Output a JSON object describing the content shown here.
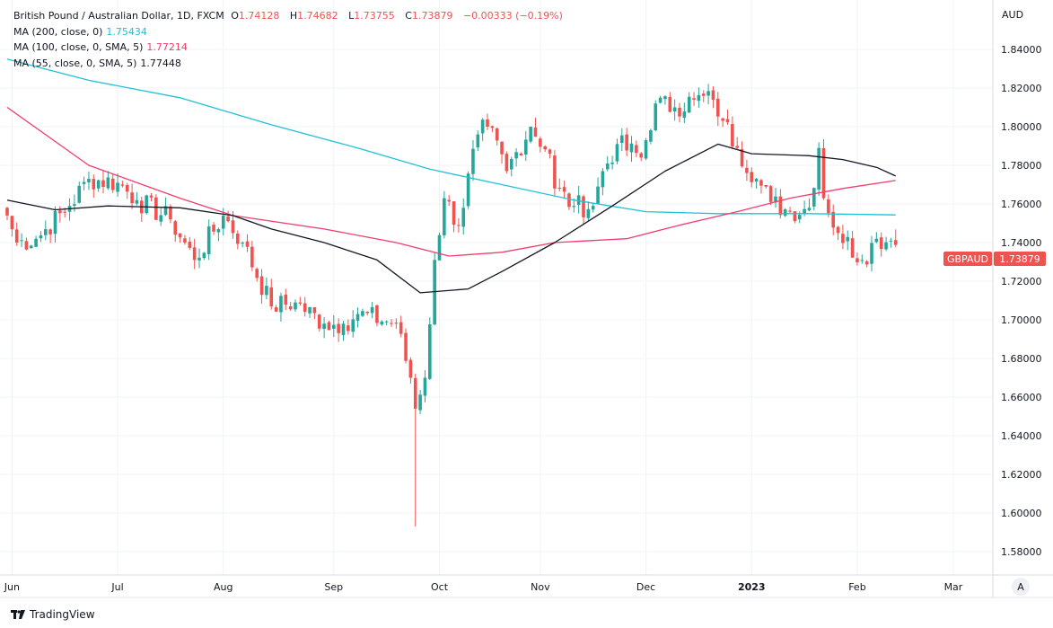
{
  "header": {
    "title": "British Pound / Australian Dollar, 1D, FXCM",
    "o_label": "O",
    "o": "1.74128",
    "h_label": "H",
    "h": "1.74682",
    "l_label": "L",
    "l": "1.73755",
    "c_label": "C",
    "c": "1.73879",
    "change": "−0.00333 (−0.19%)"
  },
  "indicators": [
    {
      "label": "MA (200, close, 0)",
      "value": "1.75434",
      "color": "#22c1d6"
    },
    {
      "label": "MA (100, close, 0, SMA, 5)",
      "value": "1.77214",
      "color": "#f23d6d"
    },
    {
      "label": "MA (55, close, 0, SMA, 5)",
      "value": "1.77448",
      "color": "#131722"
    }
  ],
  "price_label": {
    "symbol": "GBPAUD",
    "value": "1.73879"
  },
  "currency": "AUD",
  "auto_button": "A",
  "brand": "TradingView",
  "chart_data": {
    "type": "candlestick",
    "title": "British Pound / Australian Dollar, 1D, FXCM",
    "ylim": [
      1.57,
      1.85
    ],
    "y_ticks": [
      "1.84000",
      "1.82000",
      "1.80000",
      "1.78000",
      "1.76000",
      "1.74000",
      "1.72000",
      "1.70000",
      "1.68000",
      "1.66000",
      "1.64000",
      "1.62000",
      "1.60000",
      "1.58000"
    ],
    "x_ticks": [
      {
        "label": "Jun",
        "day": 1
      },
      {
        "label": "Jul",
        "day": 23
      },
      {
        "label": "Aug",
        "day": 45
      },
      {
        "label": "Sep",
        "day": 68
      },
      {
        "label": "Oct",
        "day": 90
      },
      {
        "label": "Nov",
        "day": 111
      },
      {
        "label": "Dec",
        "day": 133
      },
      {
        "label": "2023",
        "day": 155
      },
      {
        "label": "Feb",
        "day": 177
      },
      {
        "label": "Mar",
        "day": 197
      }
    ],
    "candle_count": 186,
    "close_anchors": [
      [
        0,
        1.754
      ],
      [
        2,
        1.74
      ],
      [
        6,
        1.742
      ],
      [
        13,
        1.759
      ],
      [
        17,
        1.773
      ],
      [
        23,
        1.771
      ],
      [
        27,
        1.762
      ],
      [
        34,
        1.752
      ],
      [
        39,
        1.731
      ],
      [
        45,
        1.754
      ],
      [
        49,
        1.74
      ],
      [
        55,
        1.707
      ],
      [
        60,
        1.709
      ],
      [
        66,
        1.698
      ],
      [
        70,
        1.698
      ],
      [
        73,
        1.703
      ],
      [
        81,
        1.698
      ],
      [
        84,
        1.67
      ],
      [
        85,
        1.654
      ],
      [
        87,
        1.67
      ],
      [
        89,
        1.731
      ],
      [
        91,
        1.763
      ],
      [
        94,
        1.749
      ],
      [
        98,
        1.796
      ],
      [
        100,
        1.8
      ],
      [
        104,
        1.777
      ],
      [
        109,
        1.8
      ],
      [
        113,
        1.786
      ],
      [
        114,
        1.768
      ],
      [
        118,
        1.759
      ],
      [
        122,
        1.759
      ],
      [
        124,
        1.777
      ],
      [
        127,
        1.791
      ],
      [
        132,
        1.784
      ],
      [
        135,
        1.812
      ],
      [
        139,
        1.81
      ],
      [
        143,
        1.814
      ],
      [
        147,
        1.814
      ],
      [
        149,
        1.803
      ],
      [
        152,
        1.789
      ],
      [
        156,
        1.773
      ],
      [
        159,
        1.761
      ],
      [
        163,
        1.756
      ],
      [
        167,
        1.758
      ],
      [
        169,
        1.789
      ],
      [
        170,
        1.763
      ],
      [
        173,
        1.745
      ],
      [
        178,
        1.731
      ],
      [
        181,
        1.742
      ],
      [
        184,
        1.741
      ],
      [
        185,
        1.73879
      ]
    ],
    "last_candle": {
      "open": 1.74128,
      "high": 1.74682,
      "low": 1.73755,
      "close": 1.73879
    },
    "notable_low": {
      "day": 85,
      "low": 1.593
    },
    "series": [
      {
        "name": "MA 200",
        "color": "#22c1d6",
        "points": [
          [
            0,
            1.835
          ],
          [
            17,
            1.824
          ],
          [
            36,
            1.815
          ],
          [
            55,
            1.801
          ],
          [
            73,
            1.789
          ],
          [
            88,
            1.778
          ],
          [
            103,
            1.77
          ],
          [
            118,
            1.762
          ],
          [
            133,
            1.756
          ],
          [
            148,
            1.755
          ],
          [
            167,
            1.755
          ],
          [
            185,
            1.75434
          ]
        ]
      },
      {
        "name": "MA 100",
        "color": "#f23d6d",
        "points": [
          [
            0,
            1.81
          ],
          [
            17,
            1.78
          ],
          [
            36,
            1.763
          ],
          [
            47,
            1.754
          ],
          [
            66,
            1.747
          ],
          [
            81,
            1.74
          ],
          [
            92,
            1.733
          ],
          [
            103,
            1.735
          ],
          [
            114,
            1.74
          ],
          [
            129,
            1.742
          ],
          [
            140,
            1.749
          ],
          [
            152,
            1.756
          ],
          [
            163,
            1.763
          ],
          [
            174,
            1.768
          ],
          [
            185,
            1.77214
          ]
        ]
      },
      {
        "name": "MA 55",
        "color": "#131722",
        "points": [
          [
            0,
            1.762
          ],
          [
            10,
            1.757
          ],
          [
            21,
            1.759
          ],
          [
            36,
            1.758
          ],
          [
            47,
            1.754
          ],
          [
            55,
            1.747
          ],
          [
            66,
            1.74
          ],
          [
            77,
            1.731
          ],
          [
            86,
            1.714
          ],
          [
            96,
            1.716
          ],
          [
            103,
            1.725
          ],
          [
            114,
            1.74
          ],
          [
            126,
            1.759
          ],
          [
            137,
            1.777
          ],
          [
            148,
            1.791
          ],
          [
            155,
            1.786
          ],
          [
            167,
            1.785
          ],
          [
            174,
            1.783
          ],
          [
            181,
            1.779
          ],
          [
            185,
            1.77448
          ]
        ]
      }
    ]
  }
}
